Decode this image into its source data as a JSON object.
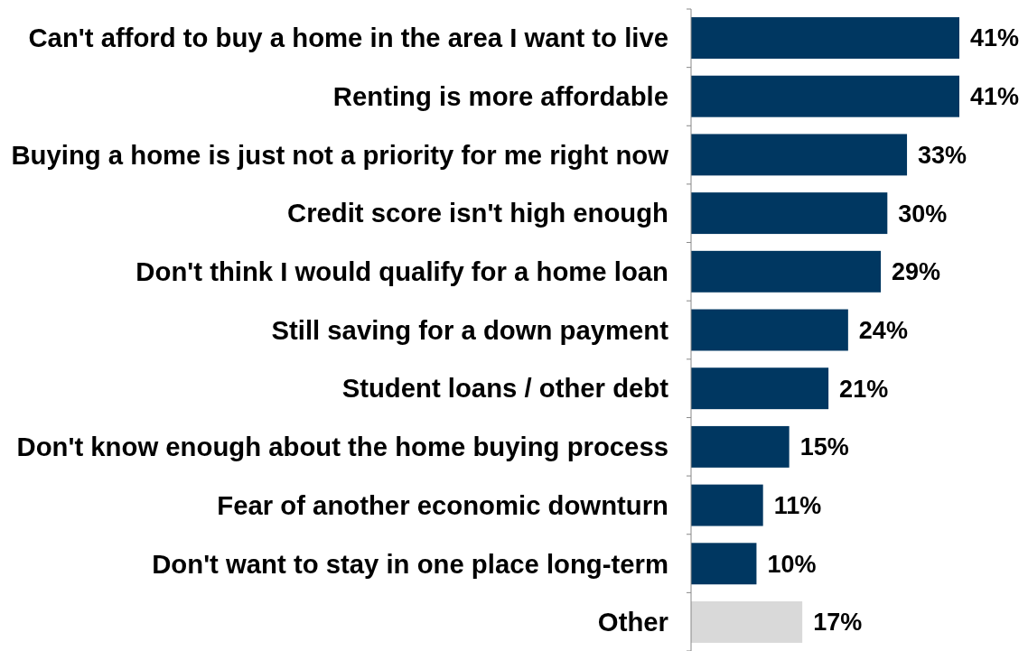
{
  "chart_data": {
    "type": "bar",
    "orientation": "horizontal",
    "categories": [
      "Can't afford to buy a home in the area I want to live",
      "Renting is more affordable",
      "Buying a home is just not a priority for me right now",
      "Credit score isn't high enough",
      "Don't think I would qualify for a home loan",
      "Still saving for a down payment",
      "Student loans / other debt",
      "Don't know enough about the home buying process",
      "Fear of another economic downturn",
      "Don't want to stay in one place long-term",
      "Other"
    ],
    "values": [
      41,
      41,
      33,
      30,
      29,
      24,
      21,
      15,
      11,
      10,
      17
    ],
    "colors": [
      "#003761",
      "#003761",
      "#003761",
      "#003761",
      "#003761",
      "#003761",
      "#003761",
      "#003761",
      "#003761",
      "#003761",
      "#d9d9d9"
    ],
    "value_labels": [
      "41%",
      "41%",
      "33%",
      "30%",
      "29%",
      "24%",
      "21%",
      "15%",
      "11%",
      "10%",
      "17%"
    ]
  }
}
